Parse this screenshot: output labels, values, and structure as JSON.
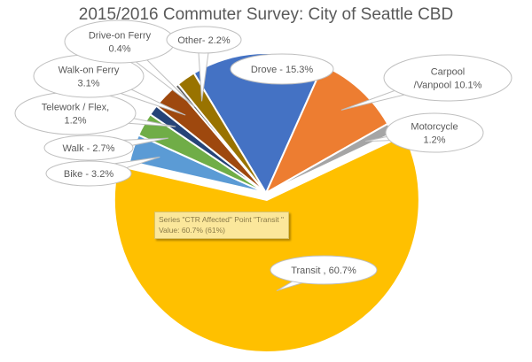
{
  "chart_data": {
    "type": "pie",
    "title": "2015/2016 Commuter Survey: City of Seattle CBD",
    "series_name": "CTR Affected",
    "slices": [
      {
        "name": "Drove",
        "value": 15.3,
        "label": [
          "Drove - 15.3%"
        ],
        "color": "#4472C4"
      },
      {
        "name": "Carpool /Vanpool",
        "value": 10.1,
        "label": [
          "Carpool",
          "/Vanpool 10.1%"
        ],
        "color": "#ED7D31"
      },
      {
        "name": "Motorcycle",
        "value": 1.2,
        "label": [
          "Motorcycle",
          "1.2%"
        ],
        "color": "#A5A5A5"
      },
      {
        "name": "Transit",
        "value": 60.7,
        "label": [
          "Transit , 60.7%"
        ],
        "color": "#FFC000"
      },
      {
        "name": "Bike",
        "value": 3.2,
        "label": [
          "Bike - 3.2%"
        ],
        "color": "#5B9BD5"
      },
      {
        "name": "Walk",
        "value": 2.7,
        "label": [
          "Walk - 2.7%"
        ],
        "color": "#70AD47"
      },
      {
        "name": "Telework / Flex",
        "value": 1.2,
        "label": [
          "Telework / Flex,",
          "1.2%"
        ],
        "color": "#264478"
      },
      {
        "name": "Walk-on Ferry",
        "value": 3.1,
        "label": [
          "Walk-on Ferry",
          "3.1%"
        ],
        "color": "#9E480E"
      },
      {
        "name": "Drive-on Ferry",
        "value": 0.4,
        "label": [
          "Drive-on Ferry",
          "0.4%"
        ],
        "color": "#636363"
      },
      {
        "name": "Other",
        "value": 2.2,
        "label": [
          "Other- 2.2%"
        ],
        "color": "#997300"
      }
    ]
  },
  "tooltip": {
    "line1": "Series \"CTR Affected\" Point \"Transit \"",
    "line2": "Value: 60.7% (61%)"
  }
}
